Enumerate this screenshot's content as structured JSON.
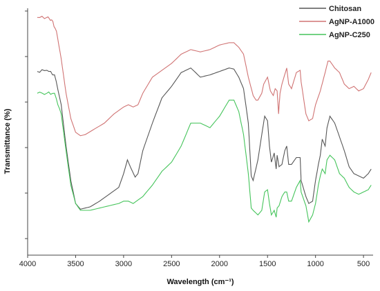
{
  "chart_data": {
    "type": "line",
    "xlabel": "Wavelength (cm⁻¹)",
    "ylabel": "Transmittance (%)",
    "xlim": [
      4000,
      400
    ],
    "x_ticks": [
      4000,
      3500,
      3000,
      2500,
      2000,
      1500,
      1000,
      500
    ],
    "y_tick_labels": "none",
    "legend_position": "top-right",
    "grid": false,
    "series": [
      {
        "name": "Chitosan",
        "color": "#555555",
        "points": [
          [
            3900,
            0.275
          ],
          [
            3800,
            0.27
          ],
          [
            3720,
            0.29
          ],
          [
            3650,
            0.42
          ],
          [
            3600,
            0.6
          ],
          [
            3550,
            0.75
          ],
          [
            3500,
            0.85
          ],
          [
            3450,
            0.875
          ],
          [
            3350,
            0.865
          ],
          [
            3250,
            0.84
          ],
          [
            3150,
            0.81
          ],
          [
            3050,
            0.78
          ],
          [
            3000,
            0.72
          ],
          [
            2960,
            0.66
          ],
          [
            2930,
            0.69
          ],
          [
            2880,
            0.735
          ],
          [
            2850,
            0.72
          ],
          [
            2800,
            0.62
          ],
          [
            2700,
            0.5
          ],
          [
            2600,
            0.39
          ],
          [
            2500,
            0.34
          ],
          [
            2400,
            0.28
          ],
          [
            2300,
            0.26
          ],
          [
            2200,
            0.3
          ],
          [
            2100,
            0.29
          ],
          [
            2000,
            0.275
          ],
          [
            1900,
            0.26
          ],
          [
            1850,
            0.265
          ],
          [
            1800,
            0.3
          ],
          [
            1750,
            0.35
          ],
          [
            1700,
            0.5
          ],
          [
            1670,
            0.73
          ],
          [
            1650,
            0.75
          ],
          [
            1600,
            0.66
          ],
          [
            1560,
            0.55
          ],
          [
            1530,
            0.47
          ],
          [
            1500,
            0.49
          ],
          [
            1480,
            0.6
          ],
          [
            1460,
            0.67
          ],
          [
            1430,
            0.63
          ],
          [
            1410,
            0.7
          ],
          [
            1400,
            0.64
          ],
          [
            1380,
            0.69
          ],
          [
            1350,
            0.68
          ],
          [
            1320,
            0.62
          ],
          [
            1300,
            0.6
          ],
          [
            1280,
            0.68
          ],
          [
            1250,
            0.68
          ],
          [
            1200,
            0.65
          ],
          [
            1160,
            0.65
          ],
          [
            1150,
            0.75
          ],
          [
            1100,
            0.82
          ],
          [
            1070,
            0.85
          ],
          [
            1030,
            0.84
          ],
          [
            1000,
            0.75
          ],
          [
            970,
            0.68
          ],
          [
            950,
            0.64
          ],
          [
            930,
            0.57
          ],
          [
            900,
            0.6
          ],
          [
            880,
            0.52
          ],
          [
            850,
            0.47
          ],
          [
            800,
            0.5
          ],
          [
            750,
            0.56
          ],
          [
            700,
            0.62
          ],
          [
            650,
            0.69
          ],
          [
            600,
            0.72
          ],
          [
            550,
            0.73
          ],
          [
            500,
            0.74
          ],
          [
            450,
            0.72
          ],
          [
            420,
            0.7
          ]
        ]
      },
      {
        "name": "AgNP-A1000",
        "color": "#d07373",
        "points": [
          [
            3900,
            0.04
          ],
          [
            3800,
            0.04
          ],
          [
            3750,
            0.05
          ],
          [
            3700,
            0.1
          ],
          [
            3650,
            0.22
          ],
          [
            3600,
            0.37
          ],
          [
            3550,
            0.48
          ],
          [
            3500,
            0.54
          ],
          [
            3450,
            0.555
          ],
          [
            3400,
            0.55
          ],
          [
            3300,
            0.525
          ],
          [
            3200,
            0.5
          ],
          [
            3100,
            0.46
          ],
          [
            3000,
            0.43
          ],
          [
            2950,
            0.42
          ],
          [
            2900,
            0.43
          ],
          [
            2850,
            0.42
          ],
          [
            2800,
            0.37
          ],
          [
            2700,
            0.3
          ],
          [
            2600,
            0.27
          ],
          [
            2500,
            0.24
          ],
          [
            2400,
            0.2
          ],
          [
            2300,
            0.18
          ],
          [
            2200,
            0.19
          ],
          [
            2100,
            0.18
          ],
          [
            2000,
            0.16
          ],
          [
            1900,
            0.15
          ],
          [
            1850,
            0.15
          ],
          [
            1800,
            0.17
          ],
          [
            1750,
            0.2
          ],
          [
            1700,
            0.3
          ],
          [
            1650,
            0.38
          ],
          [
            1620,
            0.4
          ],
          [
            1600,
            0.4
          ],
          [
            1560,
            0.37
          ],
          [
            1540,
            0.33
          ],
          [
            1500,
            0.3
          ],
          [
            1470,
            0.36
          ],
          [
            1440,
            0.38
          ],
          [
            1420,
            0.35
          ],
          [
            1400,
            0.36
          ],
          [
            1385,
            0.46
          ],
          [
            1370,
            0.37
          ],
          [
            1350,
            0.33
          ],
          [
            1300,
            0.26
          ],
          [
            1280,
            0.33
          ],
          [
            1250,
            0.35
          ],
          [
            1200,
            0.28
          ],
          [
            1160,
            0.27
          ],
          [
            1150,
            0.32
          ],
          [
            1100,
            0.46
          ],
          [
            1070,
            0.49
          ],
          [
            1030,
            0.48
          ],
          [
            1000,
            0.42
          ],
          [
            950,
            0.36
          ],
          [
            900,
            0.28
          ],
          [
            870,
            0.23
          ],
          [
            850,
            0.23
          ],
          [
            800,
            0.26
          ],
          [
            750,
            0.28
          ],
          [
            700,
            0.33
          ],
          [
            650,
            0.35
          ],
          [
            600,
            0.34
          ],
          [
            550,
            0.36
          ],
          [
            500,
            0.35
          ],
          [
            450,
            0.31
          ],
          [
            420,
            0.28
          ]
        ]
      },
      {
        "name": "AgNP-C250",
        "color": "#44c45a",
        "points": [
          [
            3900,
            0.37
          ],
          [
            3800,
            0.37
          ],
          [
            3720,
            0.37
          ],
          [
            3650,
            0.46
          ],
          [
            3600,
            0.62
          ],
          [
            3550,
            0.77
          ],
          [
            3500,
            0.85
          ],
          [
            3450,
            0.88
          ],
          [
            3350,
            0.88
          ],
          [
            3250,
            0.87
          ],
          [
            3150,
            0.86
          ],
          [
            3050,
            0.85
          ],
          [
            3000,
            0.84
          ],
          [
            2950,
            0.84
          ],
          [
            2900,
            0.85
          ],
          [
            2800,
            0.82
          ],
          [
            2700,
            0.77
          ],
          [
            2600,
            0.71
          ],
          [
            2500,
            0.67
          ],
          [
            2400,
            0.6
          ],
          [
            2300,
            0.5
          ],
          [
            2200,
            0.5
          ],
          [
            2100,
            0.52
          ],
          [
            2000,
            0.47
          ],
          [
            1900,
            0.4
          ],
          [
            1850,
            0.4
          ],
          [
            1800,
            0.45
          ],
          [
            1750,
            0.55
          ],
          [
            1700,
            0.72
          ],
          [
            1670,
            0.87
          ],
          [
            1650,
            0.88
          ],
          [
            1600,
            0.9
          ],
          [
            1560,
            0.88
          ],
          [
            1530,
            0.8
          ],
          [
            1500,
            0.79
          ],
          [
            1480,
            0.85
          ],
          [
            1460,
            0.9
          ],
          [
            1430,
            0.88
          ],
          [
            1410,
            0.91
          ],
          [
            1400,
            0.87
          ],
          [
            1380,
            0.86
          ],
          [
            1350,
            0.82
          ],
          [
            1320,
            0.8
          ],
          [
            1300,
            0.8
          ],
          [
            1280,
            0.84
          ],
          [
            1250,
            0.84
          ],
          [
            1200,
            0.78
          ],
          [
            1160,
            0.75
          ],
          [
            1150,
            0.8
          ],
          [
            1100,
            0.86
          ],
          [
            1070,
            0.93
          ],
          [
            1030,
            0.9
          ],
          [
            1000,
            0.85
          ],
          [
            970,
            0.77
          ],
          [
            950,
            0.73
          ],
          [
            930,
            0.7
          ],
          [
            900,
            0.72
          ],
          [
            880,
            0.66
          ],
          [
            850,
            0.64
          ],
          [
            800,
            0.66
          ],
          [
            750,
            0.72
          ],
          [
            700,
            0.74
          ],
          [
            650,
            0.78
          ],
          [
            600,
            0.8
          ],
          [
            550,
            0.81
          ],
          [
            500,
            0.8
          ],
          [
            450,
            0.79
          ],
          [
            420,
            0.77
          ]
        ]
      }
    ]
  }
}
